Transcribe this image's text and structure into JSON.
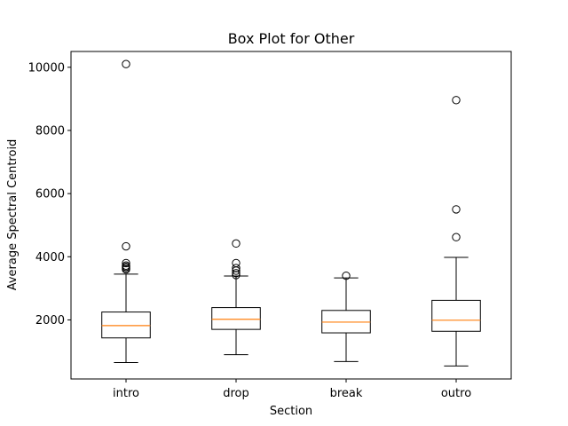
{
  "chart_data": {
    "type": "box",
    "title": "Box Plot for Other",
    "xlabel": "Section",
    "ylabel": "Average Spectral Centroid",
    "ylim": [
      130,
      10500
    ],
    "yticks": [
      2000,
      4000,
      6000,
      8000,
      10000
    ],
    "yticklabels": [
      "2000",
      "4000",
      "6000",
      "8000",
      "10000"
    ],
    "grid": false,
    "categories": [
      "intro",
      "drop",
      "break",
      "outro"
    ],
    "boxes": [
      {
        "label": "intro",
        "whisker_low": 650,
        "q1": 1430,
        "median": 1820,
        "q3": 2250,
        "whisker_high": 3450,
        "outliers": [
          3600,
          3640,
          3680,
          3720,
          3800,
          4330,
          10100
        ]
      },
      {
        "label": "drop",
        "whisker_low": 900,
        "q1": 1700,
        "median": 2020,
        "q3": 2390,
        "whisker_high": 3390,
        "outliers": [
          3420,
          3480,
          3560,
          3640,
          3800,
          4420
        ]
      },
      {
        "label": "break",
        "whisker_low": 680,
        "q1": 1590,
        "median": 1930,
        "q3": 2300,
        "whisker_high": 3330,
        "outliers": [
          3400
        ]
      },
      {
        "label": "outro",
        "whisker_low": 540,
        "q1": 1640,
        "median": 1990,
        "q3": 2620,
        "whisker_high": 3980,
        "outliers": [
          4620,
          5500,
          8960
        ]
      }
    ],
    "colors": {
      "box": "#000000",
      "median": "#ff7f0e",
      "outlier": "#000000",
      "background": "#ffffff"
    }
  }
}
